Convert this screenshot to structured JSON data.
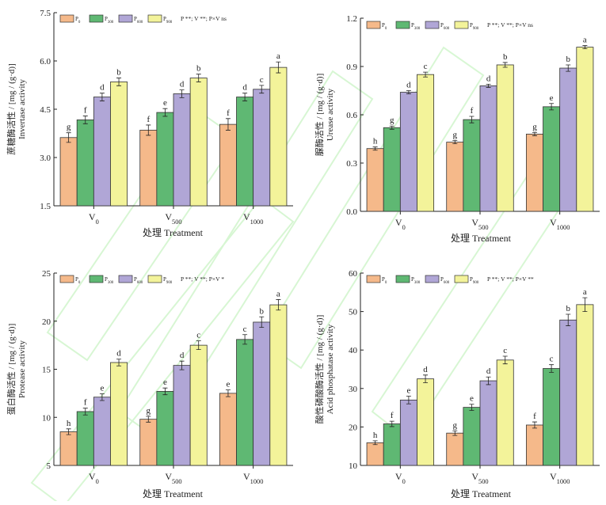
{
  "colors": {
    "P0": "#F5B98A",
    "P300": "#5FB873",
    "P600": "#B0A6D6",
    "P900": "#F3F39A",
    "axis": "#222222",
    "watermark": "#B8F0B0"
  },
  "chart_data": [
    {
      "type": "bar",
      "panel": "top-left",
      "ylabel_cn": "蔗糖酶活性 / [mg / (g·d)]",
      "ylabel_en": "Invertase activity",
      "xlabel": "处理 Treatment",
      "ylim": [
        1.5,
        7.5
      ],
      "yticks": [
        "1.5",
        "3.0",
        "4.5",
        "6.0",
        "7.5"
      ],
      "categories": [
        {
          "main": "V",
          "sub": "0"
        },
        {
          "main": "V",
          "sub": "500"
        },
        {
          "main": "V",
          "sub": "1000"
        }
      ],
      "legend_sig": "P **;  V **;  P×V ns",
      "series": [
        {
          "name": "P0",
          "label_main": "P",
          "label_sub": "0",
          "color_key": "P0",
          "values": [
            3.62,
            3.85,
            4.03
          ],
          "errors": [
            0.15,
            0.16,
            0.18
          ],
          "letters": [
            "g",
            "f",
            "f"
          ]
        },
        {
          "name": "P300",
          "label_main": "P",
          "label_sub": "300",
          "color_key": "P300",
          "values": [
            4.17,
            4.4,
            4.88
          ],
          "errors": [
            0.12,
            0.12,
            0.12
          ],
          "letters": [
            "f",
            "e",
            "d"
          ]
        },
        {
          "name": "P600",
          "label_main": "P",
          "label_sub": "600",
          "color_key": "P600",
          "values": [
            4.88,
            4.98,
            5.12
          ],
          "errors": [
            0.12,
            0.12,
            0.12
          ],
          "letters": [
            "d",
            "d",
            "c"
          ]
        },
        {
          "name": "P900",
          "label_main": "P",
          "label_sub": "900",
          "color_key": "P900",
          "values": [
            5.35,
            5.47,
            5.8
          ],
          "errors": [
            0.12,
            0.12,
            0.17
          ],
          "letters": [
            "b",
            "b",
            "a"
          ]
        }
      ]
    },
    {
      "type": "bar",
      "panel": "top-right",
      "ylabel_cn": "脲酶活性 / [mg / (g·d)]",
      "ylabel_en": "Urease activity",
      "xlabel": "处理 Treatment",
      "ylim": [
        0.0,
        1.2
      ],
      "yticks": [
        "0.0",
        "0.3",
        "0.6",
        "0.9",
        "1.2"
      ],
      "categories": [
        {
          "main": "V",
          "sub": "0"
        },
        {
          "main": "V",
          "sub": "500"
        },
        {
          "main": "V",
          "sub": "1000"
        }
      ],
      "legend_sig": "P **;  V **;  P×V ns",
      "series": [
        {
          "name": "P0",
          "label_main": "P",
          "label_sub": "0",
          "color_key": "P0",
          "values": [
            0.39,
            0.43,
            0.48
          ],
          "errors": [
            0.01,
            0.01,
            0.01
          ],
          "letters": [
            "h",
            "g",
            "g"
          ]
        },
        {
          "name": "P300",
          "label_main": "P",
          "label_sub": "300",
          "color_key": "P300",
          "values": [
            0.52,
            0.57,
            0.65
          ],
          "errors": [
            0.01,
            0.02,
            0.02
          ],
          "letters": [
            "g",
            "f",
            "e"
          ]
        },
        {
          "name": "P600",
          "label_main": "P",
          "label_sub": "600",
          "color_key": "P600",
          "values": [
            0.74,
            0.78,
            0.89
          ],
          "errors": [
            0.01,
            0.01,
            0.02
          ],
          "letters": [
            "d",
            "d",
            "b"
          ]
        },
        {
          "name": "P900",
          "label_main": "P",
          "label_sub": "900",
          "color_key": "P900",
          "values": [
            0.85,
            0.91,
            1.02
          ],
          "errors": [
            0.015,
            0.015,
            0.01
          ],
          "letters": [
            "c",
            "b",
            "a"
          ]
        }
      ]
    },
    {
      "type": "bar",
      "panel": "bottom-left",
      "ylabel_cn": "蛋白酶活性 / [mg / (g·d)]",
      "ylabel_en": "Protease activity",
      "xlabel": "处理 Treatment",
      "ylim": [
        5,
        25
      ],
      "yticks": [
        "5",
        "10",
        "15",
        "20",
        "25"
      ],
      "categories": [
        {
          "main": "V",
          "sub": "0"
        },
        {
          "main": "V",
          "sub": "500"
        },
        {
          "main": "V",
          "sub": "1000"
        }
      ],
      "legend_sig": "P **;  V **;  P×V *",
      "series": [
        {
          "name": "P0",
          "label_main": "P",
          "label_sub": "0",
          "color_key": "P0",
          "values": [
            8.5,
            9.8,
            12.5
          ],
          "errors": [
            0.3,
            0.3,
            0.35
          ],
          "letters": [
            "h",
            "g",
            "e"
          ]
        },
        {
          "name": "P300",
          "label_main": "P",
          "label_sub": "300",
          "color_key": "P300",
          "values": [
            10.6,
            12.7,
            18.1
          ],
          "errors": [
            0.35,
            0.35,
            0.5
          ],
          "letters": [
            "f",
            "e",
            "c"
          ]
        },
        {
          "name": "P600",
          "label_main": "P",
          "label_sub": "600",
          "color_key": "P600",
          "values": [
            12.1,
            15.4,
            19.9
          ],
          "errors": [
            0.35,
            0.45,
            0.55
          ],
          "letters": [
            "e",
            "d",
            "b"
          ]
        },
        {
          "name": "P900",
          "label_main": "P",
          "label_sub": "900",
          "color_key": "P900",
          "values": [
            15.7,
            17.5,
            21.7
          ],
          "errors": [
            0.35,
            0.45,
            0.55
          ],
          "letters": [
            "d",
            "c",
            "a"
          ]
        }
      ]
    },
    {
      "type": "bar",
      "panel": "bottom-right",
      "ylabel_cn": "酸性磷酸酶活性 / [mg / (g·d)]",
      "ylabel_en": "Acid phosphatase activity",
      "xlabel": "处理 Treatment",
      "ylim": [
        10,
        60
      ],
      "yticks": [
        "10",
        "20",
        "30",
        "40",
        "50",
        "60"
      ],
      "categories": [
        {
          "main": "V",
          "sub": "0"
        },
        {
          "main": "V",
          "sub": "500"
        },
        {
          "main": "V",
          "sub": "1000"
        }
      ],
      "legend_sig": "P **;  V **;  P×V **",
      "series": [
        {
          "name": "P0",
          "label_main": "P",
          "label_sub": "0",
          "color_key": "P0",
          "values": [
            15.9,
            18.4,
            20.5
          ],
          "errors": [
            0.5,
            0.6,
            0.8
          ],
          "letters": [
            "h",
            "g",
            "f"
          ]
        },
        {
          "name": "P300",
          "label_main": "P",
          "label_sub": "300",
          "color_key": "P300",
          "values": [
            20.8,
            25.1,
            35.2
          ],
          "errors": [
            0.7,
            0.8,
            1.0
          ],
          "letters": [
            "f",
            "e",
            "c"
          ]
        },
        {
          "name": "P600",
          "label_main": "P",
          "label_sub": "600",
          "color_key": "P600",
          "values": [
            27.0,
            32.0,
            47.8
          ],
          "errors": [
            1.0,
            1.0,
            1.5
          ],
          "letters": [
            "e",
            "d",
            "b"
          ]
        },
        {
          "name": "P900",
          "label_main": "P",
          "label_sub": "900",
          "color_key": "P900",
          "values": [
            32.5,
            37.4,
            51.8
          ],
          "errors": [
            1.0,
            1.0,
            1.8
          ],
          "letters": [
            "d",
            "c",
            "a"
          ]
        }
      ]
    }
  ]
}
